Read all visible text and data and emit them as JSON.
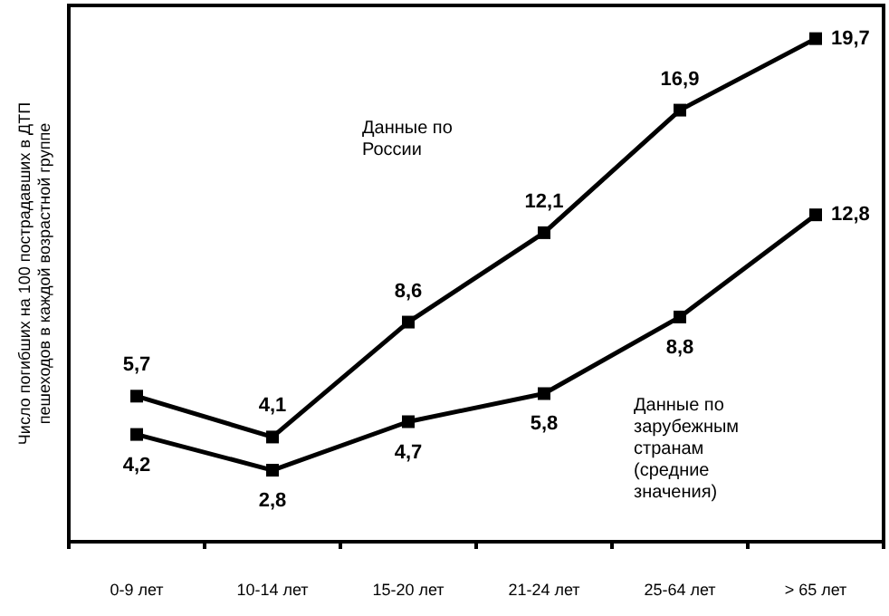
{
  "chart_data": {
    "type": "line",
    "ylabel": "Число погибших на 100 пострадавших в ДТП пешеходов в каждой возрастной группе",
    "categories": [
      "0-9 лет",
      "10-14 лет",
      "15-20 лет",
      "21-24 лет",
      "25-64 лет",
      "> 65 лет"
    ],
    "series": [
      {
        "color": "#000000",
        "values": [
          5.7,
          4.1,
          8.6,
          12.1,
          16.9,
          19.7
        ],
        "value_labels": [
          "5,7",
          "4,1",
          "8,6",
          "12,1",
          "16,9",
          "19,7"
        ]
      },
      {
        "color": "#000000",
        "values": [
          4.2,
          2.8,
          4.7,
          5.8,
          8.8,
          12.8
        ],
        "value_labels": [
          "4,2",
          "2,8",
          "4,7",
          "5,8",
          "8,8",
          "12,8"
        ]
      }
    ],
    "annotations": [
      "Данные по России",
      "Данные по зарубежным странам (средние значения)"
    ],
    "marker": "square",
    "line_style": "solid",
    "grid": false
  }
}
